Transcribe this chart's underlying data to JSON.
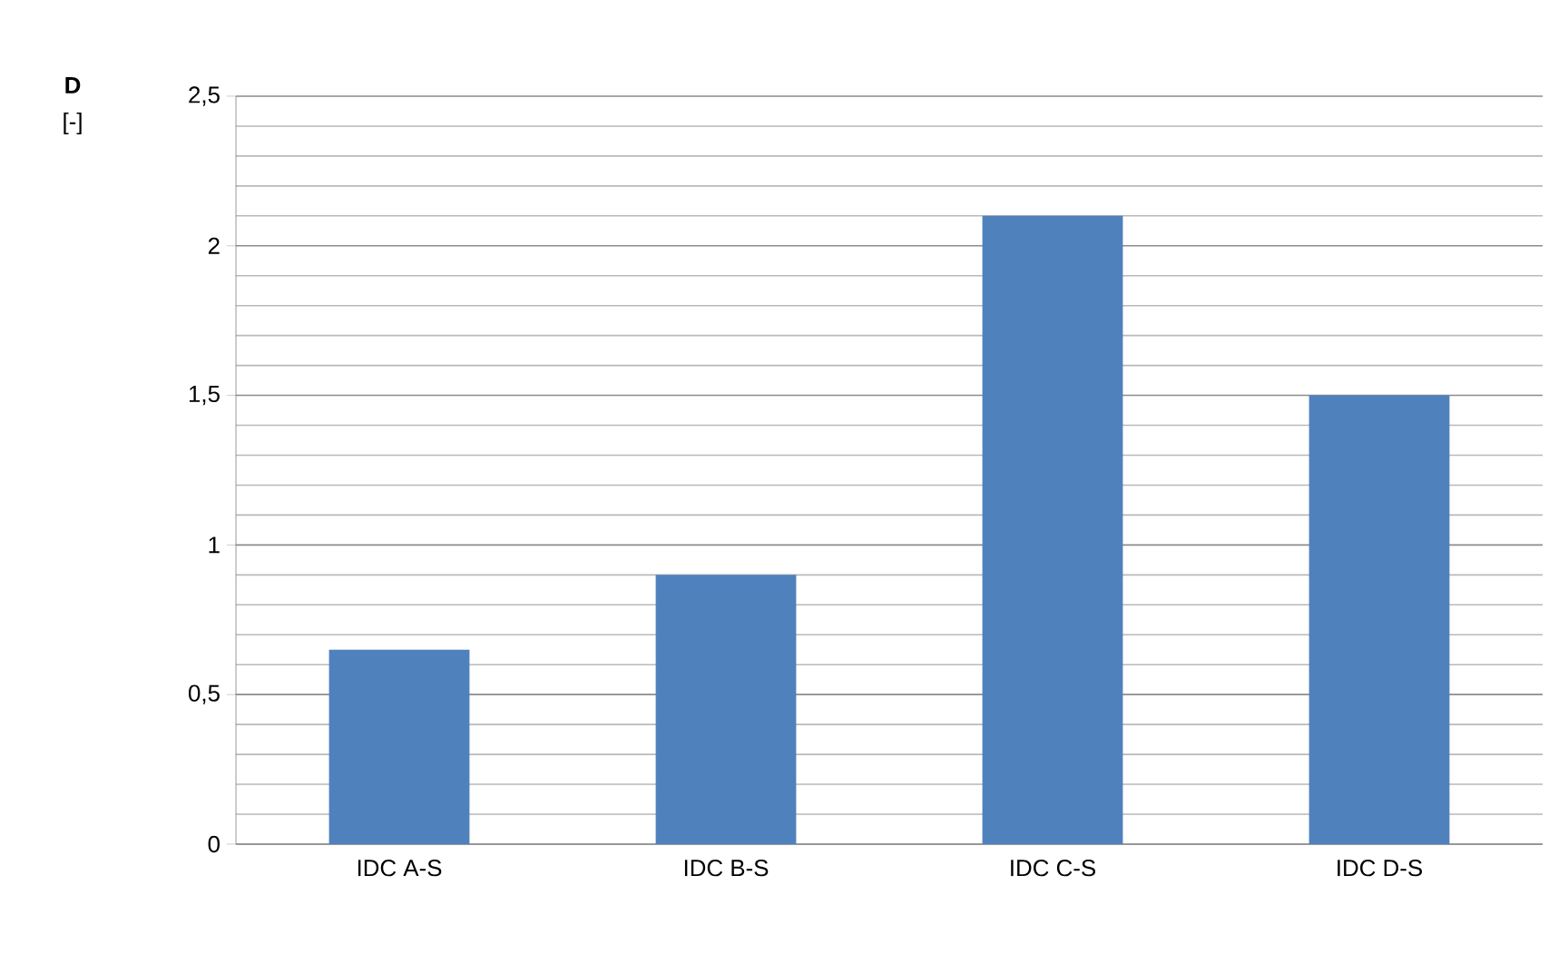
{
  "chart_data": {
    "type": "bar",
    "ylabel": "**D** [-]",
    "categories": [
      "IDC A-S",
      "IDC B-S",
      "IDC C-S",
      "IDC D-S"
    ],
    "values": [
      0.65,
      0.9,
      2.1,
      1.5
    ],
    "color": "#4f81bd",
    "ylim": [
      0,
      2.5
    ],
    "yticks": [
      0,
      {
        "value": 0.5,
        "label": "0,5"
      },
      1,
      {
        "value": 1.5,
        "label": "1,5"
      },
      2,
      {
        "value": 2.5,
        "label": "2,5"
      }
    ],
    "grid": "y"
  }
}
